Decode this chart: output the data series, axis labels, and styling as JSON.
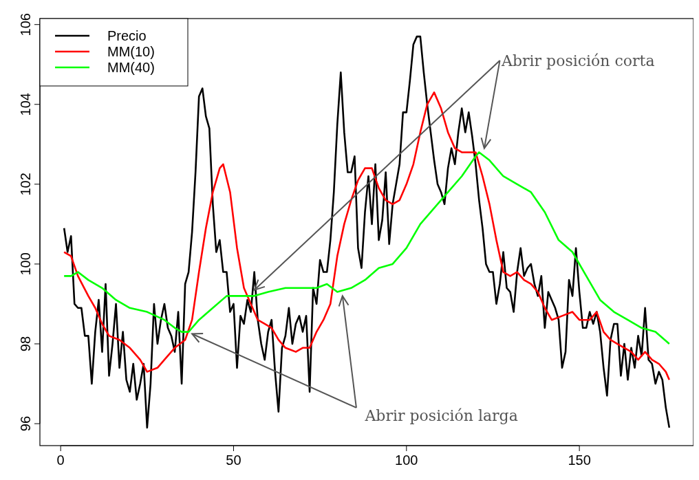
{
  "chart_data": {
    "type": "line",
    "x": [
      1,
      2,
      3,
      4,
      5,
      6,
      7,
      8,
      9,
      10,
      11,
      12,
      13,
      14,
      15,
      16,
      17,
      18,
      19,
      20,
      21,
      22,
      23,
      24,
      25,
      26,
      27,
      28,
      29,
      30,
      31,
      32,
      33,
      34,
      35,
      36,
      37,
      38,
      39,
      40,
      41,
      42,
      43,
      44,
      45,
      46,
      47,
      48,
      49,
      50,
      51,
      52,
      53,
      54,
      55,
      56,
      57,
      58,
      59,
      60,
      61,
      62,
      63,
      64,
      65,
      66,
      67,
      68,
      69,
      70,
      71,
      72,
      73,
      74,
      75,
      76,
      77,
      78,
      79,
      80,
      81,
      82,
      83,
      84,
      85,
      86,
      87,
      88,
      89,
      90,
      91,
      92,
      93,
      94,
      95,
      96,
      97,
      98,
      99,
      100,
      101,
      102,
      103,
      104,
      105,
      106,
      107,
      108,
      109,
      110,
      111,
      112,
      113,
      114,
      115,
      116,
      117,
      118,
      119,
      120,
      121,
      122,
      123,
      124,
      125,
      126,
      127,
      128,
      129,
      130,
      131,
      132,
      133,
      134,
      135,
      136,
      137,
      138,
      139,
      140,
      141,
      142,
      143,
      144,
      145,
      146,
      147,
      148,
      149,
      150,
      151,
      152,
      153,
      154,
      155,
      156,
      157,
      158,
      159,
      160,
      161,
      162,
      163,
      164,
      165,
      166,
      167,
      168,
      169,
      170,
      171,
      172,
      173,
      174,
      175,
      176
    ],
    "series": [
      {
        "name": "Precio",
        "color": "#000000",
        "values": [
          100.9,
          100.3,
          100.7,
          99.0,
          98.9,
          98.9,
          98.2,
          98.2,
          97.0,
          98.3,
          99.1,
          97.8,
          99.5,
          97.2,
          98.0,
          99.0,
          97.4,
          98.3,
          97.1,
          96.8,
          97.5,
          96.6,
          97.0,
          97.5,
          95.9,
          97.0,
          99.0,
          98.0,
          98.6,
          99.0,
          98.4,
          98.2,
          97.8,
          98.8,
          97.0,
          99.5,
          99.8,
          100.8,
          102.3,
          104.2,
          104.4,
          103.7,
          103.4,
          101.5,
          100.3,
          100.6,
          99.8,
          99.8,
          98.8,
          99.0,
          97.4,
          98.7,
          98.5,
          99.1,
          98.8,
          99.8,
          98.6,
          98.0,
          97.6,
          98.3,
          98.6,
          97.3,
          96.3,
          97.9,
          98.2,
          98.9,
          98.0,
          98.5,
          98.7,
          98.3,
          98.7,
          96.8,
          99.4,
          99.0,
          100.1,
          99.8,
          99.8,
          100.6,
          101.8,
          103.5,
          104.8,
          103.3,
          102.3,
          102.3,
          102.7,
          100.4,
          99.9,
          101.3,
          102.2,
          101.0,
          102.5,
          100.6,
          101.1,
          102.3,
          100.5,
          101.5,
          102.0,
          102.5,
          103.8,
          103.8,
          104.6,
          105.5,
          105.7,
          105.7,
          104.8,
          104.0,
          103.3,
          102.6,
          102.0,
          101.8,
          101.5,
          102.4,
          102.9,
          102.5,
          103.3,
          103.9,
          103.3,
          103.8,
          103.2,
          102.5,
          101.6,
          100.9,
          100.0,
          99.8,
          99.8,
          99.0,
          99.5,
          100.3,
          99.4,
          99.3,
          98.8,
          99.8,
          100.4,
          99.7,
          99.9,
          100.0,
          99.5,
          99.2,
          99.7,
          98.4,
          99.3,
          99.1,
          98.9,
          98.6,
          97.4,
          97.8,
          99.6,
          99.2,
          100.4,
          99.3,
          98.4,
          98.4,
          98.8,
          98.5,
          98.8,
          98.3,
          97.4,
          96.7,
          98.1,
          98.5,
          98.5,
          97.2,
          98.0,
          97.1,
          97.9,
          97.4,
          98.2,
          97.7,
          98.9,
          97.6,
          97.5,
          97.0,
          97.3,
          97.1,
          96.4,
          95.9
        ]
      },
      {
        "name": "MM(10)",
        "color": "#ff0000",
        "x": [
          1,
          3,
          5,
          8,
          10,
          12,
          14,
          17,
          20,
          23,
          25,
          28,
          30,
          33,
          36,
          38,
          40,
          42,
          44,
          46,
          47,
          49,
          51,
          53,
          55,
          57,
          59,
          61,
          63,
          65,
          68,
          70,
          72,
          74,
          76,
          78,
          80,
          82,
          84,
          86,
          88,
          90,
          92,
          94,
          96,
          98,
          100,
          102,
          104,
          106,
          108,
          110,
          112,
          114,
          116,
          118,
          120,
          122,
          124,
          126,
          128,
          130,
          132,
          134,
          136,
          138,
          140,
          142,
          145,
          148,
          150,
          153,
          155,
          157,
          159,
          161,
          163,
          165,
          167,
          169,
          171,
          173,
          175,
          176
        ],
        "values": [
          100.3,
          100.2,
          99.7,
          99.2,
          98.9,
          98.5,
          98.2,
          98.1,
          97.9,
          97.6,
          97.3,
          97.4,
          97.6,
          97.9,
          98.1,
          98.6,
          99.8,
          100.9,
          101.8,
          102.4,
          102.5,
          101.8,
          100.4,
          99.4,
          99.0,
          98.6,
          98.5,
          98.4,
          98.1,
          97.9,
          97.8,
          97.9,
          97.9,
          98.3,
          98.6,
          99.0,
          100.2,
          101.0,
          101.6,
          102.1,
          102.4,
          102.4,
          101.9,
          101.6,
          101.5,
          101.6,
          102.0,
          102.5,
          103.3,
          104.0,
          104.3,
          103.9,
          103.3,
          102.9,
          102.8,
          102.8,
          102.8,
          102.2,
          101.5,
          100.6,
          99.8,
          99.7,
          99.8,
          99.6,
          99.5,
          99.3,
          98.9,
          98.6,
          98.7,
          98.8,
          98.6,
          98.6,
          98.8,
          98.3,
          98.1,
          98.0,
          97.9,
          97.8,
          97.6,
          97.8,
          97.6,
          97.5,
          97.3,
          97.1
        ]
      },
      {
        "name": "MM(40)",
        "color": "#00ff00",
        "x": [
          1,
          3,
          5,
          8,
          12,
          16,
          20,
          25,
          30,
          33,
          35,
          37,
          40,
          44,
          48,
          52,
          56,
          60,
          65,
          70,
          74,
          77,
          80,
          84,
          88,
          92,
          96,
          100,
          104,
          108,
          112,
          116,
          120,
          121,
          124,
          128,
          132,
          136,
          140,
          144,
          148,
          152,
          156,
          160,
          164,
          168,
          172,
          176
        ],
        "values": [
          99.7,
          99.7,
          99.8,
          99.6,
          99.4,
          99.1,
          98.9,
          98.8,
          98.6,
          98.4,
          98.3,
          98.3,
          98.6,
          98.9,
          99.2,
          99.2,
          99.2,
          99.3,
          99.4,
          99.4,
          99.4,
          99.5,
          99.3,
          99.4,
          99.6,
          99.9,
          100.0,
          100.4,
          101.0,
          101.4,
          101.8,
          102.2,
          102.7,
          102.8,
          102.6,
          102.2,
          102.0,
          101.8,
          101.3,
          100.6,
          100.3,
          99.7,
          99.1,
          98.8,
          98.6,
          98.4,
          98.3,
          98.0
        ]
      }
    ],
    "xlim": [
      -6,
      183
    ],
    "ylim": [
      95.45,
      106.15
    ],
    "xticks": [
      0,
      50,
      100,
      150
    ],
    "yticks": [
      96,
      98,
      100,
      102,
      104,
      106
    ],
    "legend": "top left",
    "grid": false,
    "line_style": "solid",
    "marker": "none",
    "annotations": [
      "Abrir posición corta",
      "Abrir posición larga"
    ]
  }
}
